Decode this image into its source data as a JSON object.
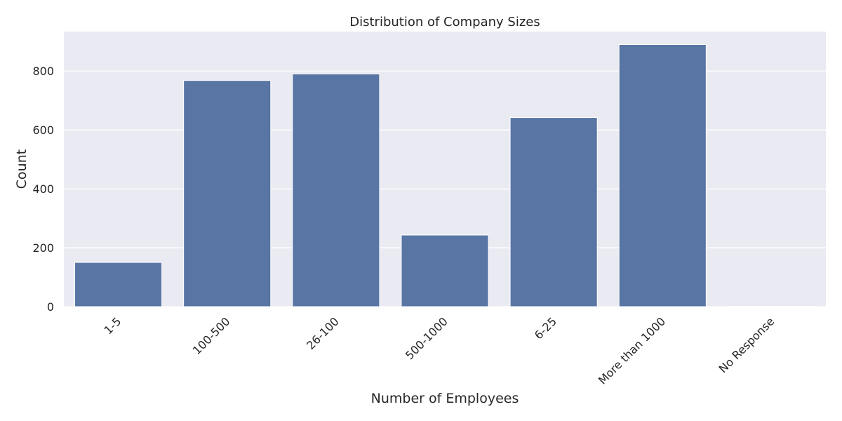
{
  "chart_data": {
    "type": "bar",
    "title": "Distribution of Company Sizes",
    "xlabel": "Number of Employees",
    "ylabel": "Count",
    "categories": [
      "1-5",
      "100-500",
      "26-100",
      "500-1000",
      "6-25",
      "More than 1000",
      "No Response"
    ],
    "values": [
      150,
      768,
      790,
      243,
      642,
      890,
      1
    ],
    "ylim": [
      0,
      934
    ],
    "yticks": [
      0,
      200,
      400,
      600,
      800
    ],
    "grid": true,
    "legend": "none",
    "colors": {
      "bar": "#5875a4",
      "plot_background": "#eaeaf2",
      "grid": "#ffffff",
      "text": "#262626"
    }
  }
}
